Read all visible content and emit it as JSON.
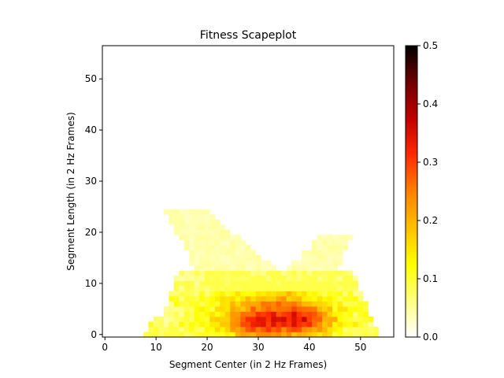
{
  "chart_data": {
    "type": "heatmap",
    "title": "Fitness Scapeplot",
    "xlabel": "Segment Center (in 2 Hz Frames)",
    "ylabel": "Segment Length (in 2 Hz Frames)",
    "xlim": [
      -0.5,
      56.5
    ],
    "ylim": [
      -0.5,
      56.5
    ],
    "xticks": [
      0,
      10,
      20,
      30,
      40,
      50
    ],
    "yticks": [
      0,
      10,
      20,
      30,
      40,
      50
    ],
    "colormap": "hot_r",
    "colorbar": {
      "range": [
        0,
        0.5
      ],
      "ticks": [
        "0.0",
        "0.1",
        "0.2",
        "0.3",
        "0.4",
        "0.5"
      ]
    },
    "grid": false,
    "description_of_cells": "Triangular scapeplot: length 0 spans centers ~8–53; a broad band of fitness 0.05–0.25 for lengths 0–12; two fainter wings (values ~0.02–0.05) reach length ~24 near center 16 and ~19 near center 45.",
    "hotspots": [
      {
        "center": 28,
        "length": 2,
        "value": 0.26
      },
      {
        "center": 32,
        "length": 2,
        "value": 0.27
      },
      {
        "center": 35,
        "length": 3,
        "value": 0.28
      },
      {
        "center": 40,
        "length": 3,
        "value": 0.28
      },
      {
        "center": 37,
        "length": 1,
        "value": 0.25
      },
      {
        "center": 30,
        "length": 6,
        "value": 0.18
      },
      {
        "center": 36,
        "length": 6,
        "value": 0.19
      }
    ]
  }
}
